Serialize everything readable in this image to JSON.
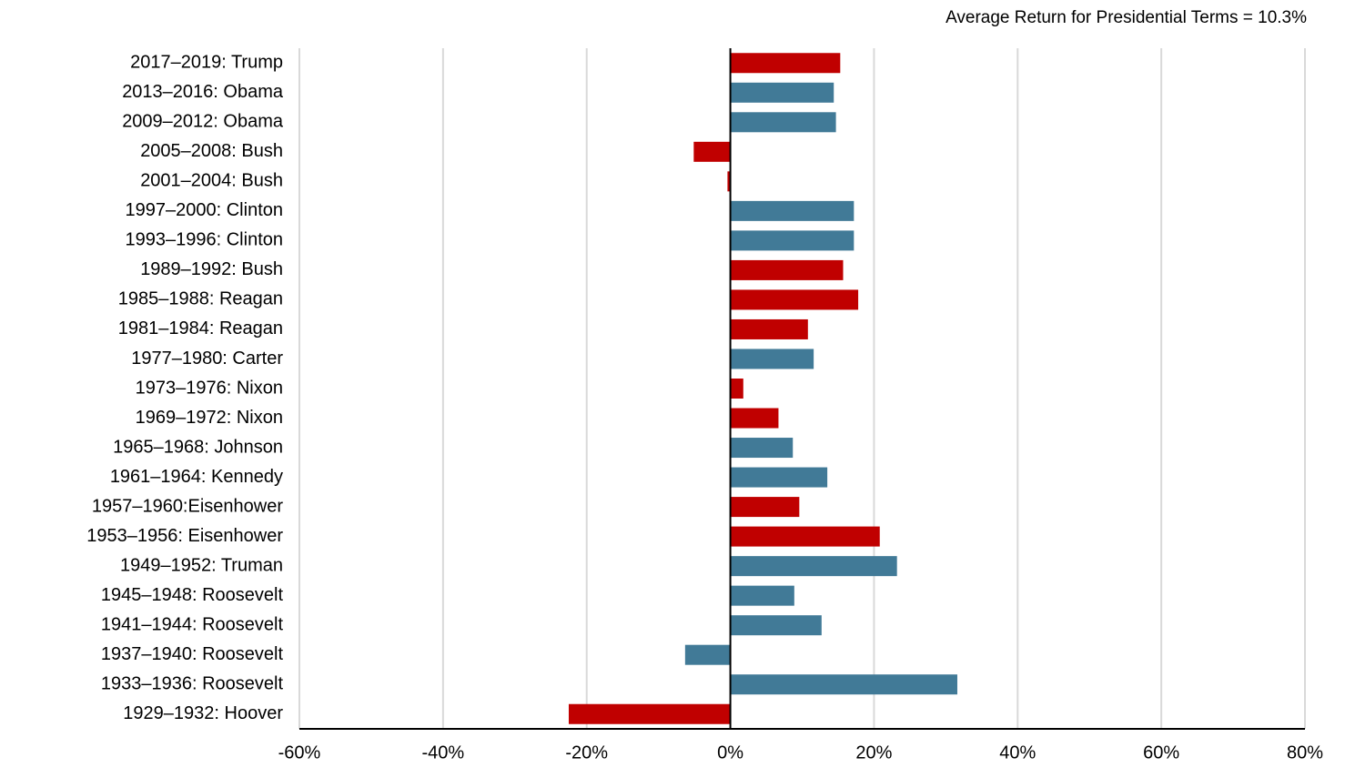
{
  "chart_data": {
    "type": "barh",
    "annotation": "Average Return for Presidential Terms = 10.3%",
    "categories": [
      "2017–2019: Trump",
      "2013–2016: Obama",
      "2009–2012: Obama",
      "2005–2008: Bush",
      "2001–2004: Bush",
      "1997–2000: Clinton",
      "1993–1996: Clinton",
      "1989–1992: Bush",
      "1985–1988: Reagan",
      "1981–1984: Reagan",
      "1977–1980: Carter",
      "1973–1976: Nixon",
      "1969–1972: Nixon",
      "1965–1968: Johnson",
      "1961–1964: Kennedy",
      "1957–1960:Eisenhower",
      "1953–1956: Eisenhower",
      "1949–1952: Truman",
      "1945–1948: Roosevelt",
      "1941–1944: Roosevelt",
      "1937–1940: Roosevelt",
      "1933–1936: Roosevelt",
      "1929–1932: Hoover"
    ],
    "values": [
      15.3,
      14.4,
      14.7,
      -5.1,
      -0.4,
      17.2,
      17.2,
      15.7,
      17.8,
      10.8,
      11.6,
      1.8,
      6.7,
      8.7,
      13.5,
      9.6,
      20.8,
      23.2,
      8.9,
      12.7,
      -6.3,
      31.6,
      -22.5
    ],
    "colors": [
      "#c00000",
      "#417a97",
      "#417a97",
      "#c00000",
      "#c00000",
      "#417a97",
      "#417a97",
      "#c00000",
      "#c00000",
      "#c00000",
      "#417a97",
      "#c00000",
      "#c00000",
      "#417a97",
      "#417a97",
      "#c00000",
      "#c00000",
      "#417a97",
      "#417a97",
      "#417a97",
      "#417a97",
      "#417a97",
      "#c00000"
    ],
    "xlim": [
      -60,
      80
    ],
    "xticks": [
      {
        "value": -60,
        "label": "-60%"
      },
      {
        "value": -40,
        "label": "-40%"
      },
      {
        "value": -20,
        "label": "-20%"
      },
      {
        "value": 0,
        "label": "0%"
      },
      {
        "value": 20,
        "label": "20%"
      },
      {
        "value": 40,
        "label": "40%"
      },
      {
        "value": 60,
        "label": "60%"
      },
      {
        "value": 80,
        "label": "80%"
      }
    ],
    "grid": true
  }
}
